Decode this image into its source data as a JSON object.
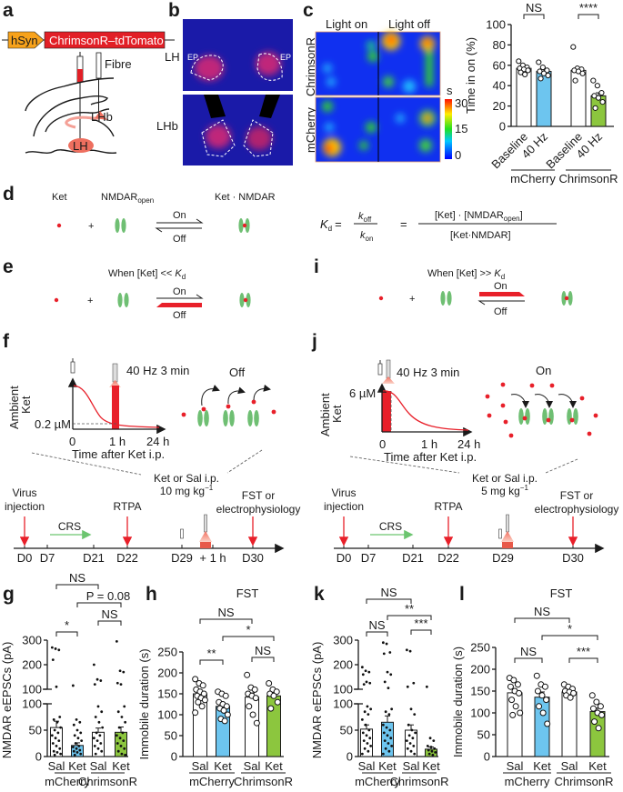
{
  "colors": {
    "red": "#e8202a",
    "blue": "#6dc5ef",
    "green": "#8cc63e",
    "orange": "#f7a21b",
    "nmdar": "#6fbf73"
  },
  "panel_labels": {
    "a": "a",
    "b": "b",
    "c": "c",
    "d": "d",
    "e": "e",
    "f": "f",
    "g": "g",
    "h": "h",
    "i": "i",
    "j": "j",
    "k": "k",
    "l": "l"
  },
  "panel_a": {
    "promoter": "hSyn",
    "construct": "ChrimsonR–tdTomato",
    "fibre": "Fibre",
    "lhb": "LHb",
    "lh": "LH"
  },
  "panel_b": {
    "lh": "LH",
    "lhb": "LHb",
    "ep": "EP"
  },
  "panel_c_heatmap": {
    "col1": "Light on",
    "col2": "Light off",
    "row1": "ChrimsonR",
    "row2": "mCherry",
    "colorbar_unit": "s",
    "colorbar_ticks": [
      "30",
      "15",
      "0"
    ],
    "colormap": "jet"
  },
  "panel_d": {
    "ket": "Ket",
    "nmdar": "NMDAR",
    "nmdar_sub": "open",
    "complex": "Ket · NMDAR",
    "plus": "+",
    "on": "On",
    "off": "Off",
    "eq_k": "K",
    "eq_d": "d",
    "eq_equals": "=",
    "eq_koff_k": "k",
    "eq_koff_sub": "off",
    "eq_kon_k": "k",
    "eq_kon_sub": "on",
    "eq_num": "[Ket] · [NMDAR",
    "eq_num_sub": "open",
    "eq_num_end": "]",
    "eq_den": "[Ket·NMDAR]"
  },
  "panel_e": {
    "condition": "When [Ket] << ",
    "cond_k": "K",
    "cond_sub": "d",
    "plus": "+",
    "on": "On",
    "off": "Off"
  },
  "panel_i": {
    "condition": "When [Ket] >> ",
    "cond_k": "K",
    "cond_sub": "d",
    "plus": "+",
    "on": "On",
    "off": "Off"
  },
  "panel_f": {
    "stim": "40 Hz 3 min",
    "ylabel1": "Ambient",
    "ylabel2": "Ket",
    "conc": "0.2 µM",
    "xticks": [
      "0",
      "1 h",
      "24 h"
    ],
    "xlabel": "Time after Ket i.p.",
    "state": "Off",
    "timeline": {
      "events": [
        "Virus",
        "injection",
        "CRS",
        "RTPA",
        "Ket or Sal i.p.",
        "10 mg kg",
        "−1",
        "FST or",
        "electrophysiology"
      ],
      "days": [
        "D0",
        "D7",
        "D21",
        "D22",
        "D29",
        "+ 1 h",
        "D30"
      ]
    }
  },
  "panel_j": {
    "stim": "40 Hz 3 min",
    "ylabel1": "Ambient",
    "ylabel2": "Ket",
    "conc": "6 µM",
    "xticks": [
      "0",
      "1 h",
      "24 h"
    ],
    "xlabel": "Time after Ket i.p.",
    "state": "On",
    "timeline": {
      "events": [
        "Virus",
        "injection",
        "CRS",
        "RTPA",
        "Ket or Sal i.p.",
        "5 mg kg",
        "−1",
        "FST or",
        "electrophysiology"
      ],
      "days": [
        "D0",
        "D7",
        "D21",
        "D22",
        "D29",
        "D30"
      ]
    }
  },
  "chart_data": [
    {
      "id": "c",
      "type": "bar",
      "title": "",
      "ylabel": "Time in on (%)",
      "ylim": [
        0,
        100
      ],
      "yticks": [
        "0",
        "20",
        "40",
        "60",
        "80",
        "100"
      ],
      "categories": [
        "Baseline",
        "40 Hz",
        "Baseline",
        "40 Hz"
      ],
      "groups": [
        "mCherry",
        "ChrimsonR"
      ],
      "values": [
        57,
        54,
        55,
        30
      ],
      "sem": [
        2,
        2,
        3,
        3
      ],
      "points": [
        [
          64,
          60,
          58,
          57,
          56,
          55,
          53,
          51
        ],
        [
          63,
          58,
          55,
          54,
          52,
          50,
          47
        ],
        [
          78,
          57,
          56,
          55,
          54,
          52,
          45
        ],
        [
          45,
          40,
          33,
          30,
          28,
          24,
          18
        ]
      ],
      "brackets": [
        {
          "label": "NS",
          "from": 0,
          "to": 1
        },
        {
          "label": "****",
          "from": 2,
          "to": 3
        }
      ]
    },
    {
      "id": "g",
      "type": "bar",
      "title": "",
      "ylabel": "NMDAR eEPSCs (pA)",
      "ylim": [
        0,
        300
      ],
      "axis_break": 100,
      "yticks": [
        "0",
        "50",
        "100",
        "100",
        "200",
        "300"
      ],
      "categories": [
        "Sal",
        "Ket",
        "Sal",
        "Ket"
      ],
      "groups": [
        "mCherry",
        "ChrimsonR"
      ],
      "values": [
        55,
        21,
        46,
        46
      ],
      "sem": [
        12,
        5,
        8,
        10
      ],
      "points": [
        [
          270,
          265,
          260,
          220,
          110,
          75,
          70,
          65,
          55,
          50,
          45,
          40,
          35,
          30,
          25,
          20,
          15,
          10,
          8,
          5,
          3
        ],
        [
          115,
          70,
          65,
          60,
          50,
          45,
          40,
          35,
          30,
          25,
          20,
          18,
          15,
          12,
          10,
          8,
          5,
          3
        ],
        [
          200,
          140,
          135,
          120,
          95,
          85,
          75,
          65,
          55,
          45,
          40,
          35,
          30,
          25,
          20,
          15,
          10,
          5
        ],
        [
          295,
          175,
          170,
          125,
          120,
          95,
          85,
          75,
          65,
          55,
          45,
          40,
          35,
          30,
          25,
          20,
          15,
          10,
          5,
          3
        ]
      ],
      "brackets": [
        {
          "label": "NS",
          "from": 0,
          "to": 2
        },
        {
          "label": "P = 0.08",
          "from": 1,
          "to": 3
        },
        {
          "label": "NS",
          "from": 2,
          "to": 3
        },
        {
          "label": "*",
          "from": 0,
          "to": 1
        }
      ]
    },
    {
      "id": "h",
      "type": "bar",
      "title": "FST",
      "ylabel": "Immobile duration (s)",
      "ylim": [
        0,
        250
      ],
      "yticks": [
        "0",
        "50",
        "100",
        "150",
        "200",
        "250"
      ],
      "categories": [
        "Sal",
        "Ket",
        "Sal",
        "Ket"
      ],
      "groups": [
        "mCherry",
        "ChrimsonR"
      ],
      "values": [
        150,
        120,
        142,
        145
      ],
      "sem": [
        8,
        8,
        10,
        8
      ],
      "points": [
        [
          185,
          175,
          170,
          160,
          155,
          150,
          145,
          140,
          135,
          130,
          120,
          105
        ],
        [
          155,
          150,
          145,
          130,
          125,
          120,
          115,
          110,
          100,
          90,
          85
        ],
        [
          195,
          165,
          160,
          150,
          145,
          140,
          120,
          100,
          80
        ],
        [
          175,
          160,
          155,
          150,
          145,
          130,
          115
        ]
      ],
      "brackets": [
        {
          "label": "NS",
          "from": 0,
          "to": 2
        },
        {
          "label": "*",
          "from": 1,
          "to": 3
        },
        {
          "label": "NS",
          "from": 2,
          "to": 3
        },
        {
          "label": "**",
          "from": 0,
          "to": 1
        }
      ]
    },
    {
      "id": "k",
      "type": "bar",
      "title": "",
      "ylabel": "NMDAR eEPSCs (pA)",
      "ylim": [
        0,
        300
      ],
      "axis_break": 100,
      "yticks": [
        "0",
        "50",
        "100",
        "100",
        "200",
        "300"
      ],
      "categories": [
        "Sal",
        "Ket",
        "Sal",
        "Ket"
      ],
      "groups": [
        "mCherry",
        "ChrimsonR"
      ],
      "values": [
        52,
        65,
        50,
        14
      ],
      "sem": [
        8,
        12,
        10,
        4
      ],
      "points": [
        [
          190,
          175,
          170,
          160,
          130,
          125,
          120,
          95,
          90,
          85,
          80,
          70,
          60,
          50,
          45,
          40,
          35,
          30,
          25,
          20,
          15,
          10,
          5
        ],
        [
          290,
          285,
          250,
          245,
          170,
          160,
          130,
          105,
          90,
          85,
          80,
          60,
          55,
          50,
          45,
          40,
          35,
          30,
          25,
          20,
          15,
          10,
          5
        ],
        [
          260,
          255,
          125,
          110,
          90,
          80,
          60,
          50,
          45,
          40,
          35,
          30,
          25,
          20,
          15,
          10,
          5
        ],
        [
          110,
          35,
          30,
          20,
          18,
          15,
          12,
          10,
          8,
          5,
          3
        ]
      ],
      "brackets": [
        {
          "label": "NS",
          "from": 0,
          "to": 2
        },
        {
          "label": "**",
          "from": 1,
          "to": 3
        },
        {
          "label": "NS",
          "from": 0,
          "to": 1
        },
        {
          "label": "***",
          "from": 2,
          "to": 3
        }
      ]
    },
    {
      "id": "l",
      "type": "bar",
      "title": "FST",
      "ylabel": "Immobile duration (s)",
      "ylim": [
        0,
        250
      ],
      "yticks": [
        "0",
        "50",
        "100",
        "150",
        "200",
        "250"
      ],
      "categories": [
        "Sal",
        "Ket",
        "Sal",
        "Ket"
      ],
      "groups": [
        "mCherry",
        "ChrimsonR"
      ],
      "values": [
        146,
        136,
        148,
        103
      ],
      "sem": [
        8,
        12,
        6,
        8
      ],
      "points": [
        [
          180,
          175,
          165,
          160,
          150,
          145,
          130,
          115,
          100,
          95
        ],
        [
          185,
          165,
          160,
          150,
          140,
          130,
          115,
          100,
          75
        ],
        [
          165,
          160,
          155,
          150,
          148,
          145,
          140,
          135
        ],
        [
          140,
          125,
          115,
          110,
          100,
          95,
          80,
          65
        ]
      ],
      "brackets": [
        {
          "label": "NS",
          "from": 0,
          "to": 2
        },
        {
          "label": "*",
          "from": 1,
          "to": 3
        },
        {
          "label": "NS",
          "from": 0,
          "to": 1
        },
        {
          "label": "***",
          "from": 2,
          "to": 3
        }
      ]
    }
  ]
}
